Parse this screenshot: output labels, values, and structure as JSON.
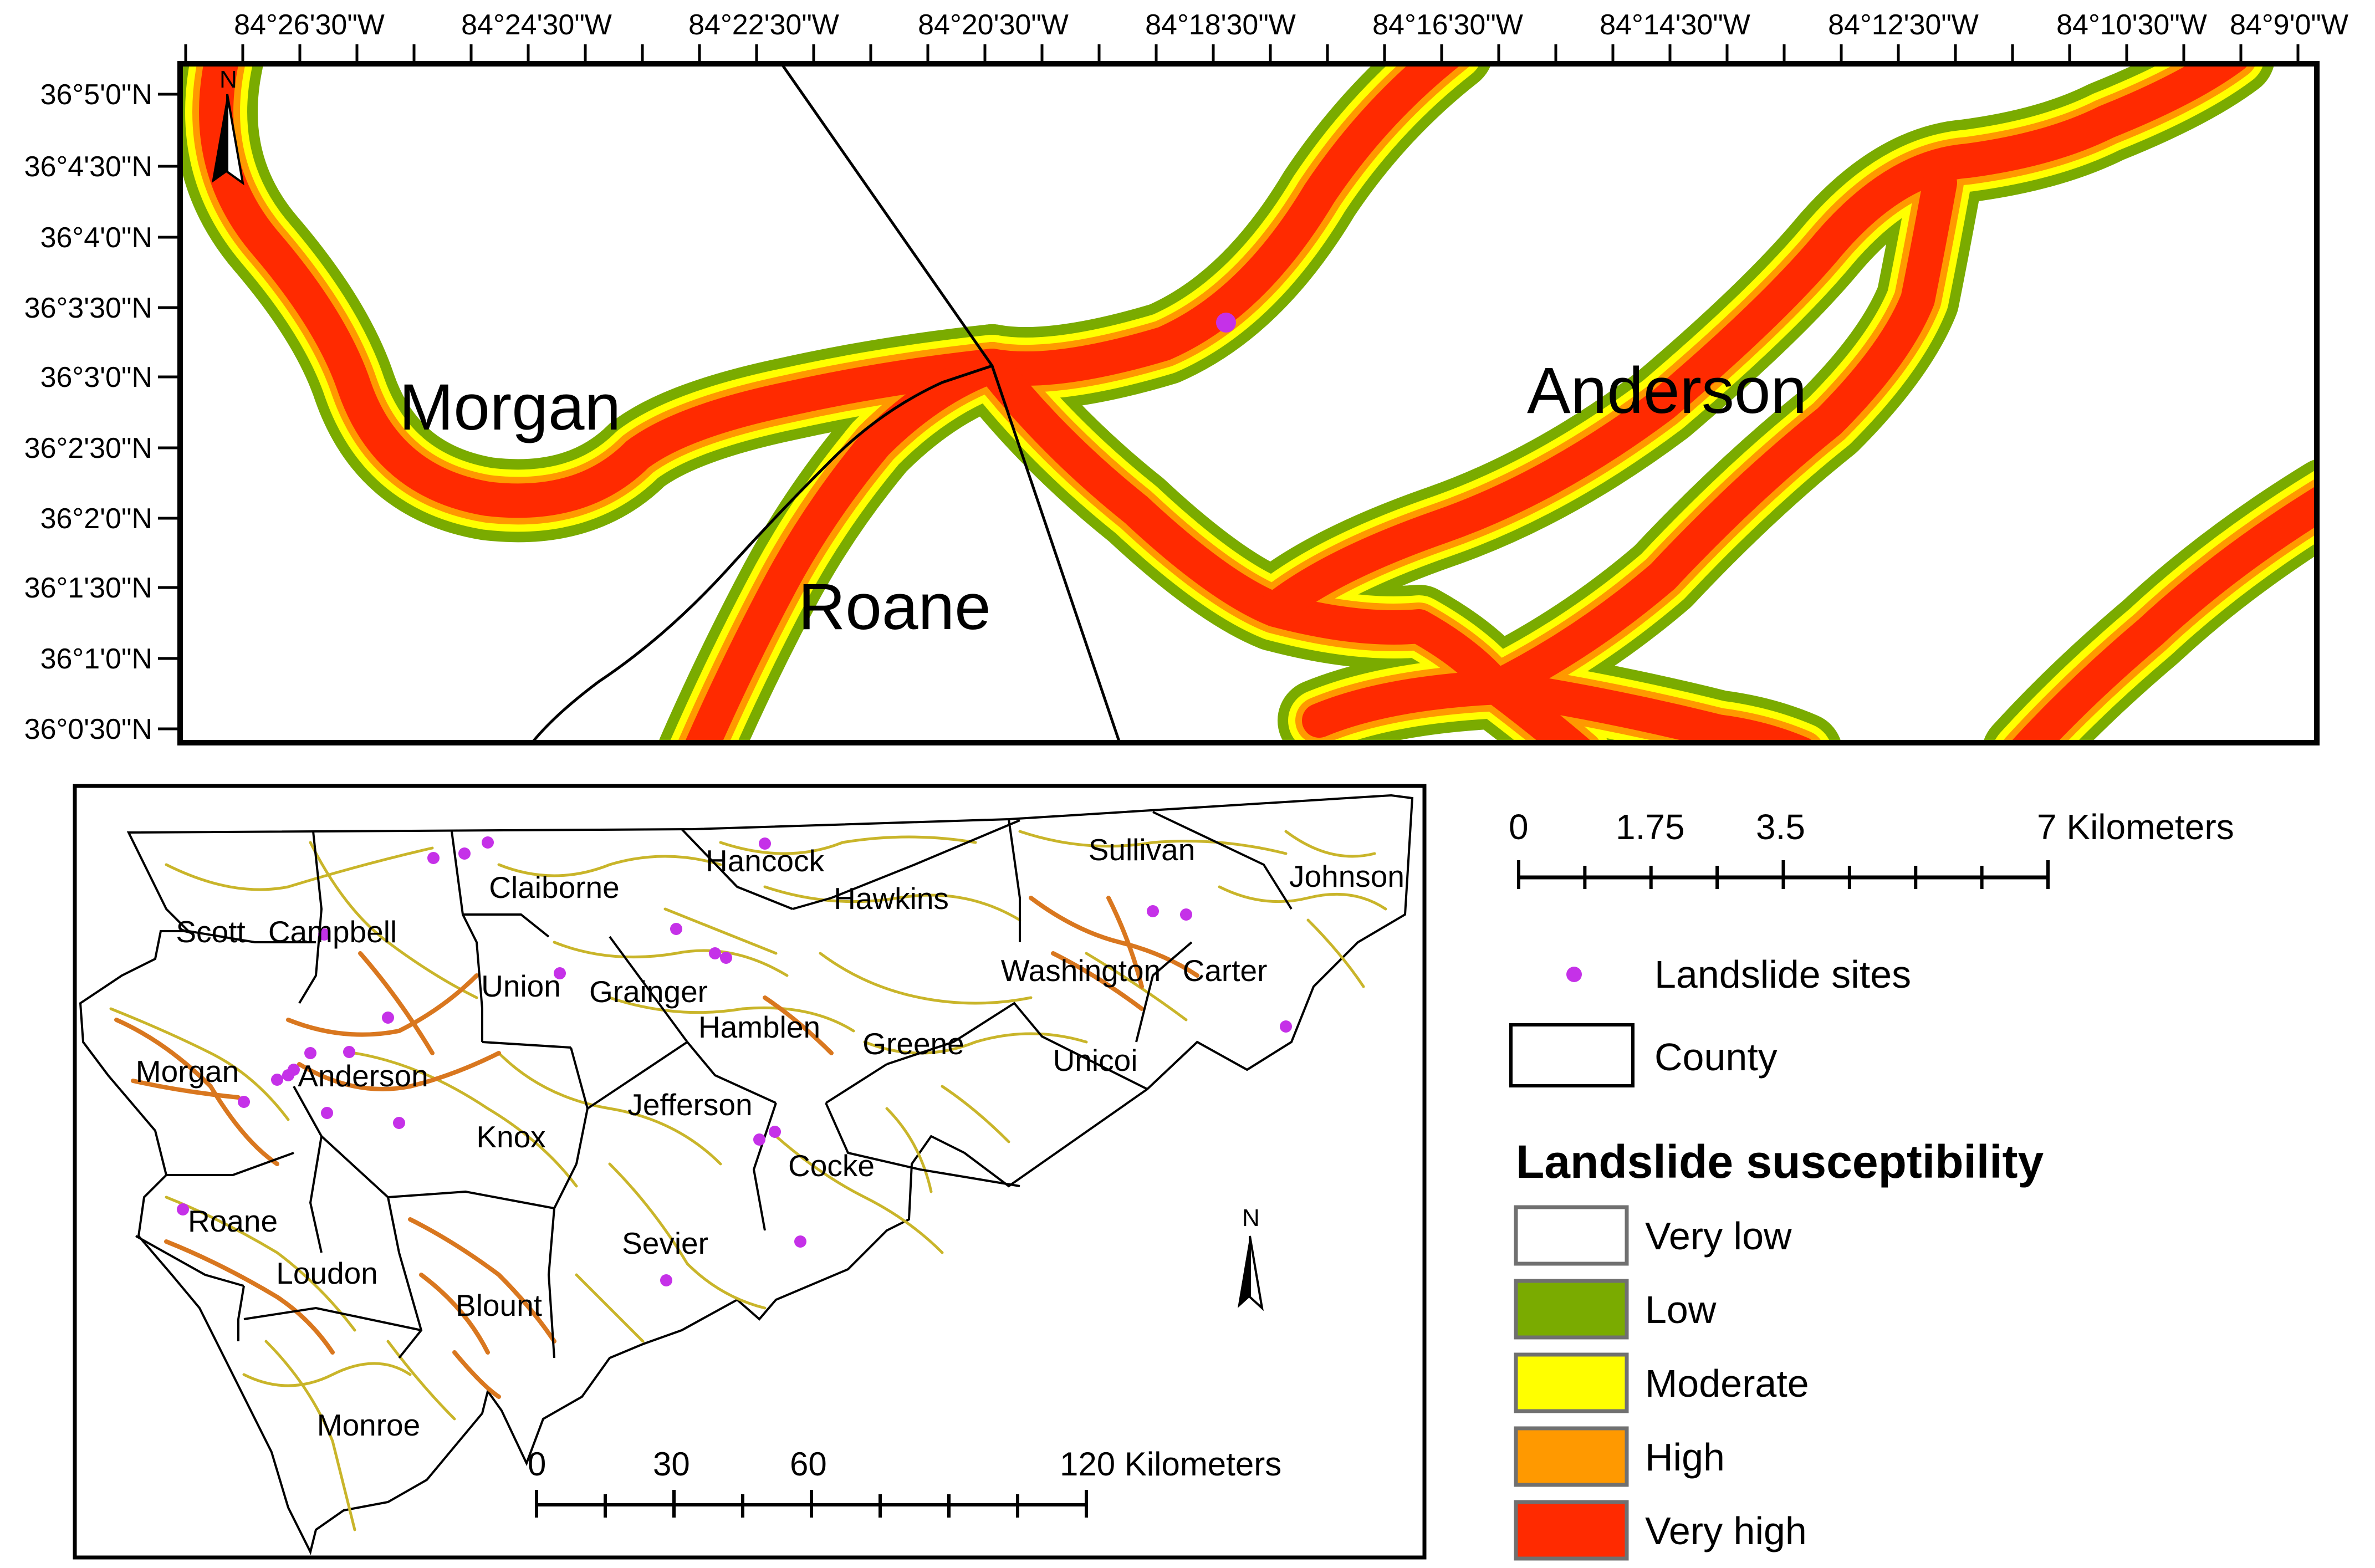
{
  "main_map": {
    "lon_ticks": [
      "84°26'30\"W",
      "84°24'30\"W",
      "84°22'30\"W",
      "84°20'30\"W",
      "84°18'30\"W",
      "84°16'30\"W",
      "84°14'30\"W",
      "84°12'30\"W",
      "84°10'30\"W",
      "84°9'0\"W"
    ],
    "lat_ticks": [
      "36°5'0\"N",
      "36°4'30\"N",
      "36°4'0\"N",
      "36°3'30\"N",
      "36°3'0\"N",
      "36°2'30\"N",
      "36°2'0\"N",
      "36°1'30\"N",
      "36°1'0\"N",
      "36°0'30\"N"
    ],
    "county_labels": [
      "Morgan",
      "Anderson",
      "Roane"
    ],
    "north_label": "N"
  },
  "inset_map": {
    "counties": [
      "Scott",
      "Campbell",
      "Claiborne",
      "Hancock",
      "Hawkins",
      "Sullivan",
      "Johnson",
      "Union",
      "Grainger",
      "Hamblen",
      "Washington",
      "Carter",
      "Greene",
      "Unicoi",
      "Morgan",
      "Anderson",
      "Knox",
      "Jefferson",
      "Cocke",
      "Roane",
      "Sevier",
      "Loudon",
      "Blount",
      "Monroe"
    ],
    "north_label": "N",
    "scale": {
      "ticks": [
        "0",
        "30",
        "60",
        "120 Kilometers"
      ]
    }
  },
  "scale_bar": {
    "ticks": [
      "0",
      "1.75",
      "3.5",
      "7 Kilometers"
    ]
  },
  "legend": {
    "landslide_sites": "Landslide sites",
    "county": "County",
    "title": "Landslide susceptibility",
    "classes": [
      {
        "label": "Very low",
        "color": "#ffffff"
      },
      {
        "label": "Low",
        "color": "#7aab00"
      },
      {
        "label": "Moderate",
        "color": "#ffff00"
      },
      {
        "label": "High",
        "color": "#ff9900"
      },
      {
        "label": "Very high",
        "color": "#ff2a00"
      }
    ]
  },
  "colors": {
    "site_marker": "#c531e8",
    "road_low": "#c9b52a",
    "road_high": "#d9771f"
  }
}
